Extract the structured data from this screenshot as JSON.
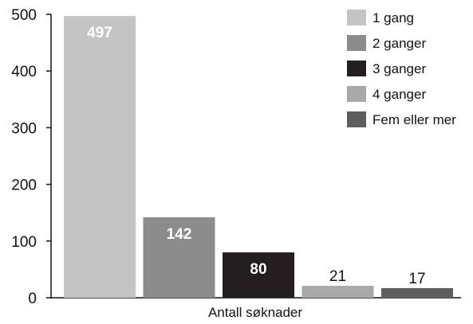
{
  "chart_data": {
    "type": "bar",
    "categories": [
      "1 gang",
      "2 ganger",
      "3 ganger",
      "4 ganger",
      "Fem eller mer"
    ],
    "values": [
      497,
      142,
      80,
      21,
      17
    ],
    "value_labels": [
      "497",
      "142",
      "80",
      "21",
      "17"
    ],
    "colors": [
      "#c4c4c4",
      "#8c8c8c",
      "#231f20",
      "#a8a8a8",
      "#5e5e5e"
    ],
    "label_colors": [
      "#ffffff",
      "#ffffff",
      "#ffffff",
      "#111111",
      "#111111"
    ],
    "label_inside": [
      true,
      true,
      true,
      false,
      false
    ],
    "title": "",
    "xlabel": "Antall søknader",
    "ylabel": "",
    "ylim": [
      0,
      500
    ],
    "yticks": [
      "0",
      "100",
      "200",
      "300",
      "400",
      "500"
    ],
    "grid": false,
    "legend": {
      "position": "top-right",
      "entries": [
        "1 gang",
        "2 ganger",
        "3 ganger",
        "4 ganger",
        "Fem eller mer"
      ]
    }
  }
}
